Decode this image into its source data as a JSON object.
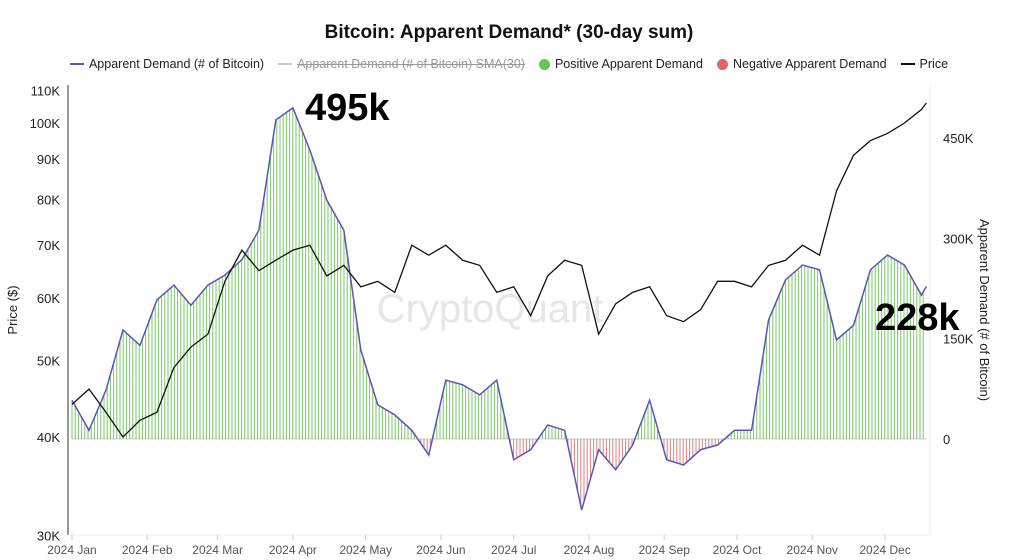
{
  "chart_data": {
    "type": "line",
    "title": "Bitcoin: Apparent Demand* (30-day sum)",
    "legend": [
      {
        "name": "Apparent Demand (# of Bitcoin)",
        "color": "#5b55b5"
      },
      {
        "name": "Apparent Demand (# of Bitcoin)  SMA(30)",
        "color": "#bbbbbb",
        "hidden": true
      },
      {
        "name": "Positive Apparent Demand",
        "color": "#6cc25a"
      },
      {
        "name": "Negative Apparent Demand",
        "color": "#e06666"
      },
      {
        "name": "Price",
        "color": "#111111"
      }
    ],
    "legend_position": "top",
    "y_left": {
      "label": "Price ($)",
      "scale": "log",
      "range": [
        30000,
        110000
      ],
      "ticks": [
        "30K",
        "40K",
        "50K",
        "60K",
        "70K",
        "80K",
        "90K",
        "100K",
        "110K"
      ],
      "tick_values": [
        30000,
        40000,
        50000,
        60000,
        70000,
        80000,
        90000,
        100000,
        110000
      ]
    },
    "y_right": {
      "label": "Apparent Demand (# of Bitcoin)",
      "range": [
        -190000,
        520000
      ],
      "ticks": [
        "0",
        "150K",
        "300K",
        "450K"
      ],
      "tick_values": [
        0,
        150000,
        300000,
        450000
      ]
    },
    "x_ticks": [
      "2024 Jan",
      "2024 Feb",
      "2024 Mar",
      "2024 Apr",
      "2024 May",
      "2024 Jun",
      "2024 Jul",
      "2024 Aug",
      "2024 Sep",
      "2024 Oct",
      "2024 Nov",
      "2024 Dec"
    ],
    "x_tick_dates": [
      "2024-01-01",
      "2024-02-01",
      "2024-03-01",
      "2024-04-01",
      "2024-05-01",
      "2024-06-01",
      "2024-07-01",
      "2024-08-01",
      "2024-09-01",
      "2024-10-01",
      "2024-11-01",
      "2024-12-01"
    ],
    "dates": [
      "2024-01-01",
      "2024-01-08",
      "2024-01-15",
      "2024-01-22",
      "2024-01-29",
      "2024-02-05",
      "2024-02-12",
      "2024-02-19",
      "2024-02-26",
      "2024-03-04",
      "2024-03-11",
      "2024-03-18",
      "2024-03-25",
      "2024-04-01",
      "2024-04-08",
      "2024-04-15",
      "2024-04-22",
      "2024-04-29",
      "2024-05-06",
      "2024-05-13",
      "2024-05-20",
      "2024-05-27",
      "2024-06-03",
      "2024-06-10",
      "2024-06-17",
      "2024-06-24",
      "2024-07-01",
      "2024-07-08",
      "2024-07-15",
      "2024-07-22",
      "2024-07-29",
      "2024-08-05",
      "2024-08-12",
      "2024-08-19",
      "2024-08-26",
      "2024-09-02",
      "2024-09-09",
      "2024-09-16",
      "2024-09-23",
      "2024-09-30",
      "2024-10-07",
      "2024-10-14",
      "2024-10-21",
      "2024-10-28",
      "2024-11-04",
      "2024-11-11",
      "2024-11-18",
      "2024-11-25",
      "2024-12-02",
      "2024-12-09",
      "2024-12-16",
      "2024-12-18"
    ],
    "series": [
      {
        "name": "Apparent Demand (# of Bitcoin)",
        "axis": "right",
        "values": [
          58000,
          13000,
          73000,
          163000,
          140000,
          208000,
          230000,
          200000,
          230000,
          245000,
          268000,
          312000,
          477000,
          495000,
          432000,
          357000,
          312000,
          133000,
          51000,
          36000,
          13000,
          -24000,
          88000,
          81000,
          66000,
          88000,
          -31000,
          -16000,
          21000,
          13000,
          -106000,
          -16000,
          -46000,
          -9000,
          58000,
          -31000,
          -39000,
          -16000,
          -9000,
          13000,
          13000,
          178000,
          238000,
          260000,
          253000,
          148000,
          170000,
          253000,
          275000,
          260000,
          215000,
          228000
        ]
      },
      {
        "name": "Price",
        "axis": "left",
        "values": [
          44000,
          46000,
          43000,
          40000,
          42000,
          43000,
          49000,
          52000,
          54000,
          63000,
          69000,
          65000,
          67000,
          69000,
          70000,
          64000,
          66000,
          62000,
          63000,
          61000,
          70000,
          68000,
          70000,
          67000,
          66000,
          61000,
          62000,
          57000,
          64000,
          67000,
          66000,
          54000,
          59000,
          61000,
          62000,
          57000,
          56000,
          58000,
          63000,
          63000,
          62000,
          66000,
          67000,
          70000,
          68000,
          82000,
          91000,
          95000,
          97000,
          100000,
          104000,
          106000
        ]
      }
    ],
    "annotations": [
      "495k",
      "228k"
    ],
    "watermark": "CryptoQuant"
  }
}
